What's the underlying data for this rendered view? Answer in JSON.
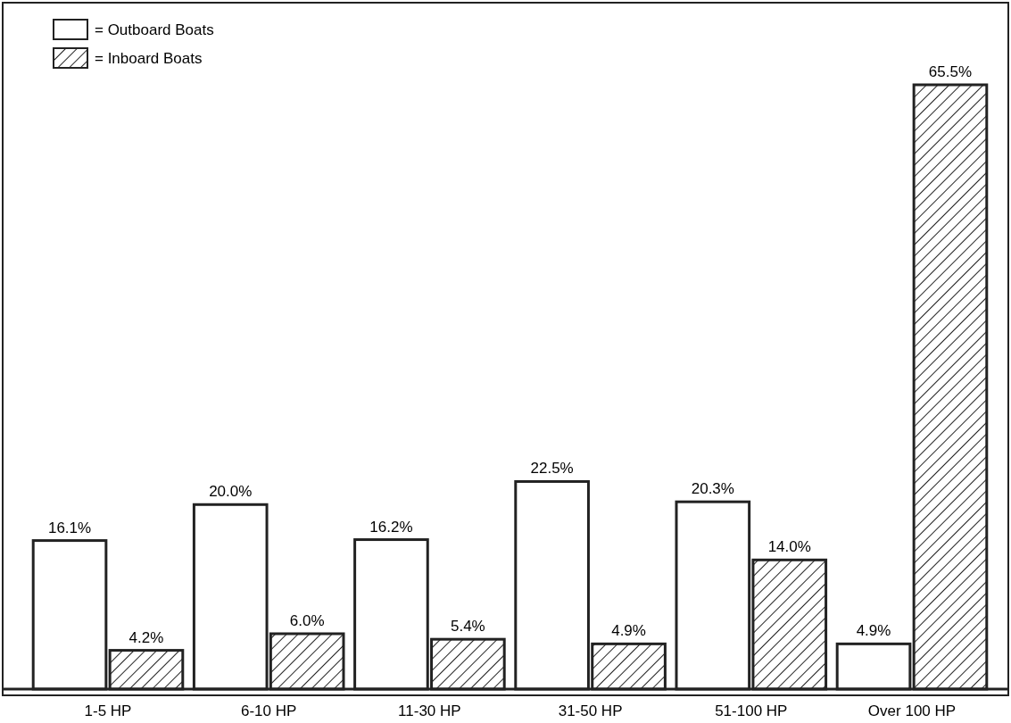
{
  "chart_data": {
    "type": "bar",
    "categories": [
      "1-5 HP",
      "6-10 HP",
      "11-30 HP",
      "31-50 HP",
      "51-100 HP",
      "Over 100 HP"
    ],
    "series": [
      {
        "name": "= Outboard Boats",
        "color": "#ffffff",
        "values": [
          16.1,
          20.0,
          16.2,
          22.5,
          20.3,
          4.9
        ],
        "value_labels": [
          "16.1%",
          "20.0%",
          "16.2%",
          "22.5%",
          "20.3%",
          "4.9%"
        ]
      },
      {
        "name": "= Inboard Boats",
        "color": "#222222",
        "values": [
          4.2,
          6.0,
          5.4,
          4.9,
          14.0,
          65.5
        ],
        "value_labels": [
          "4.2%",
          "6.0%",
          "5.4%",
          "4.9%",
          "14.0%",
          "65.5%"
        ]
      }
    ],
    "legend": "top left",
    "grid": false
  }
}
